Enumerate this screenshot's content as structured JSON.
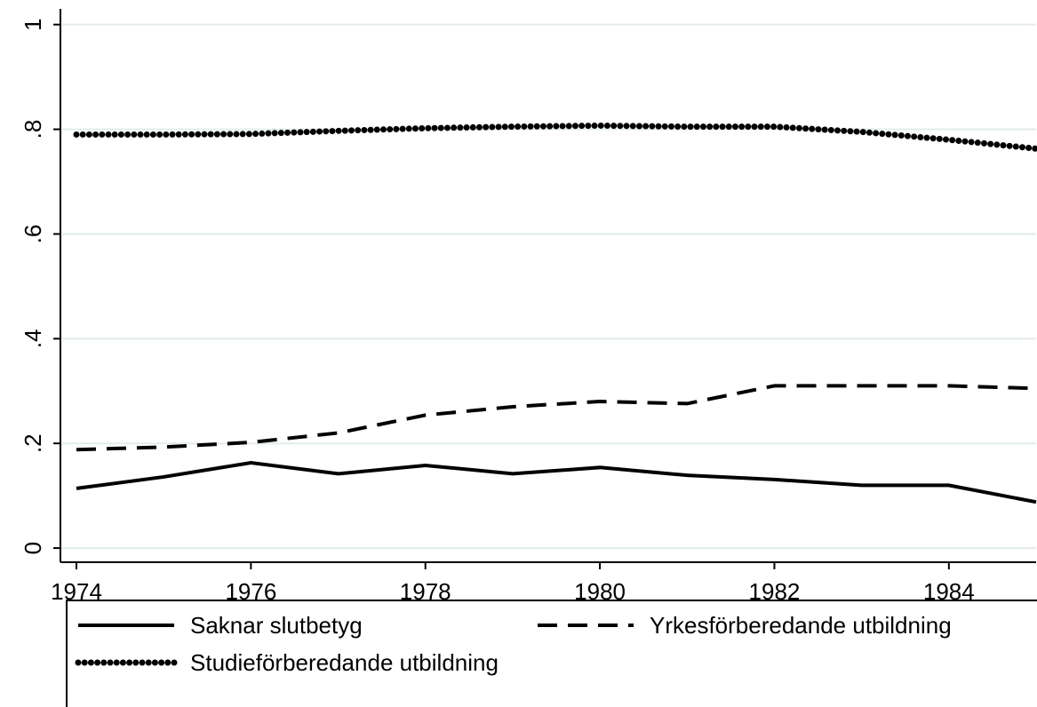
{
  "chart_data": {
    "type": "line",
    "x": [
      1974,
      1975,
      1976,
      1977,
      1978,
      1979,
      1980,
      1981,
      1982,
      1983,
      1984,
      1985
    ],
    "series": [
      {
        "name": "Saknar slutbetyg",
        "color": "#000000",
        "style": "solid",
        "values": [
          0.114,
          0.136,
          0.163,
          0.142,
          0.158,
          0.142,
          0.154,
          0.139,
          0.131,
          0.12,
          0.12,
          0.088
        ]
      },
      {
        "name": "Yrkesförberedande utbildning",
        "color": "#000000",
        "style": "dashed",
        "values": [
          0.188,
          0.193,
          0.202,
          0.22,
          0.254,
          0.27,
          0.28,
          0.276,
          0.31,
          0.31,
          0.31,
          0.305
        ]
      },
      {
        "name": "Studieförberedande utbildning",
        "color": "#000000",
        "style": "dotted",
        "values": [
          0.79,
          0.79,
          0.791,
          0.797,
          0.802,
          0.805,
          0.807,
          0.805,
          0.805,
          0.795,
          0.78,
          0.763
        ]
      }
    ],
    "xlim": [
      1974,
      1985
    ],
    "xticks": [
      1974,
      1976,
      1978,
      1980,
      1982,
      1984
    ],
    "ylim": [
      -0.027,
      1.03
    ],
    "yticks": [
      0,
      {
        "value": 0.2,
        "label": ".2"
      },
      {
        "value": 0.4,
        "label": ".4"
      },
      {
        "value": 0.6,
        "label": ".6"
      },
      {
        "value": 0.8,
        "label": ".8"
      },
      1
    ],
    "grid": true,
    "legend": "bottom"
  }
}
